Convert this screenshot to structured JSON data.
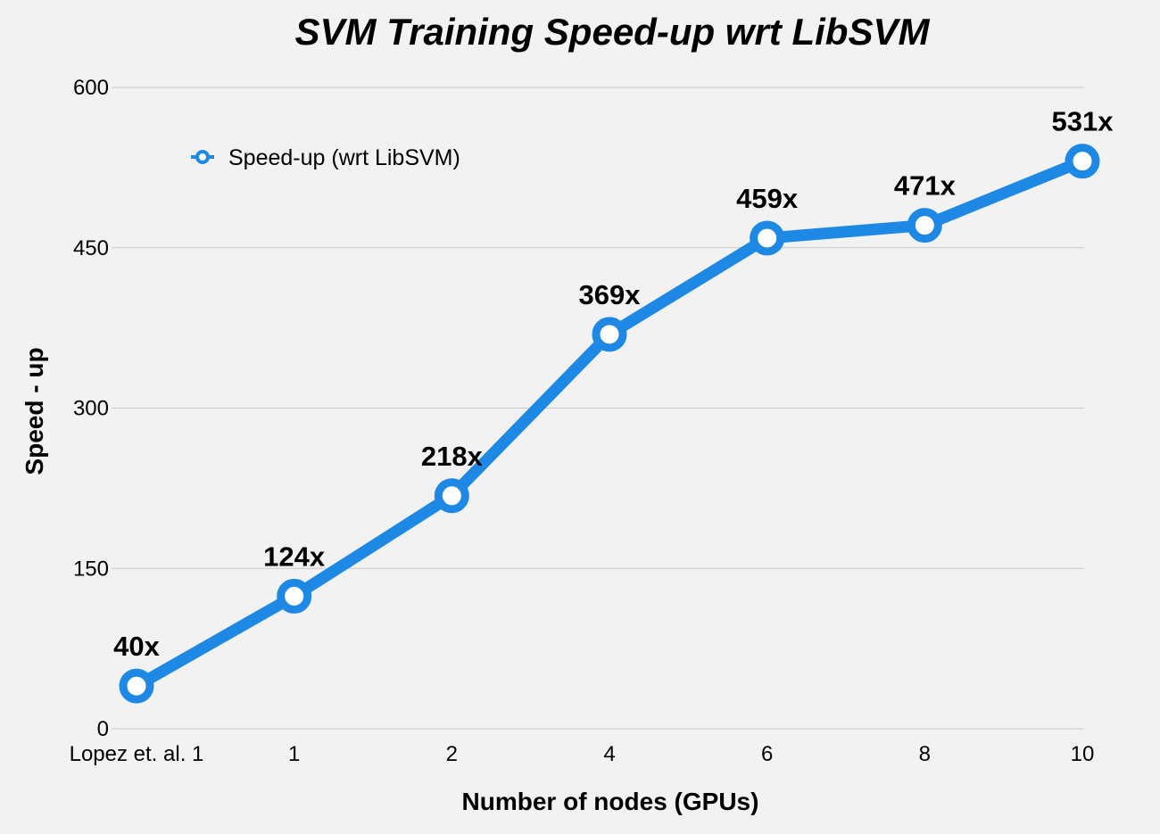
{
  "chart_data": {
    "type": "line",
    "title": "SVM Training Speed-up wrt LibSVM",
    "xlabel": "Number of nodes (GPUs)",
    "ylabel": "Speed - up",
    "categories": [
      "Lopez et. al. 1",
      "1",
      "2",
      "4",
      "6",
      "8",
      "10"
    ],
    "series": [
      {
        "name": "Speed-up (wrt LibSVM)",
        "values": [
          40,
          124,
          218,
          369,
          459,
          471,
          531
        ],
        "labels": [
          "40x",
          "124x",
          "218x",
          "369x",
          "459x",
          "471x",
          "531x"
        ],
        "color": "#1e88e5"
      }
    ],
    "ylim": [
      0,
      600
    ],
    "yticks": [
      "0",
      "150",
      "300",
      "450",
      "600"
    ],
    "grid": true,
    "legend_position": "top-left"
  }
}
